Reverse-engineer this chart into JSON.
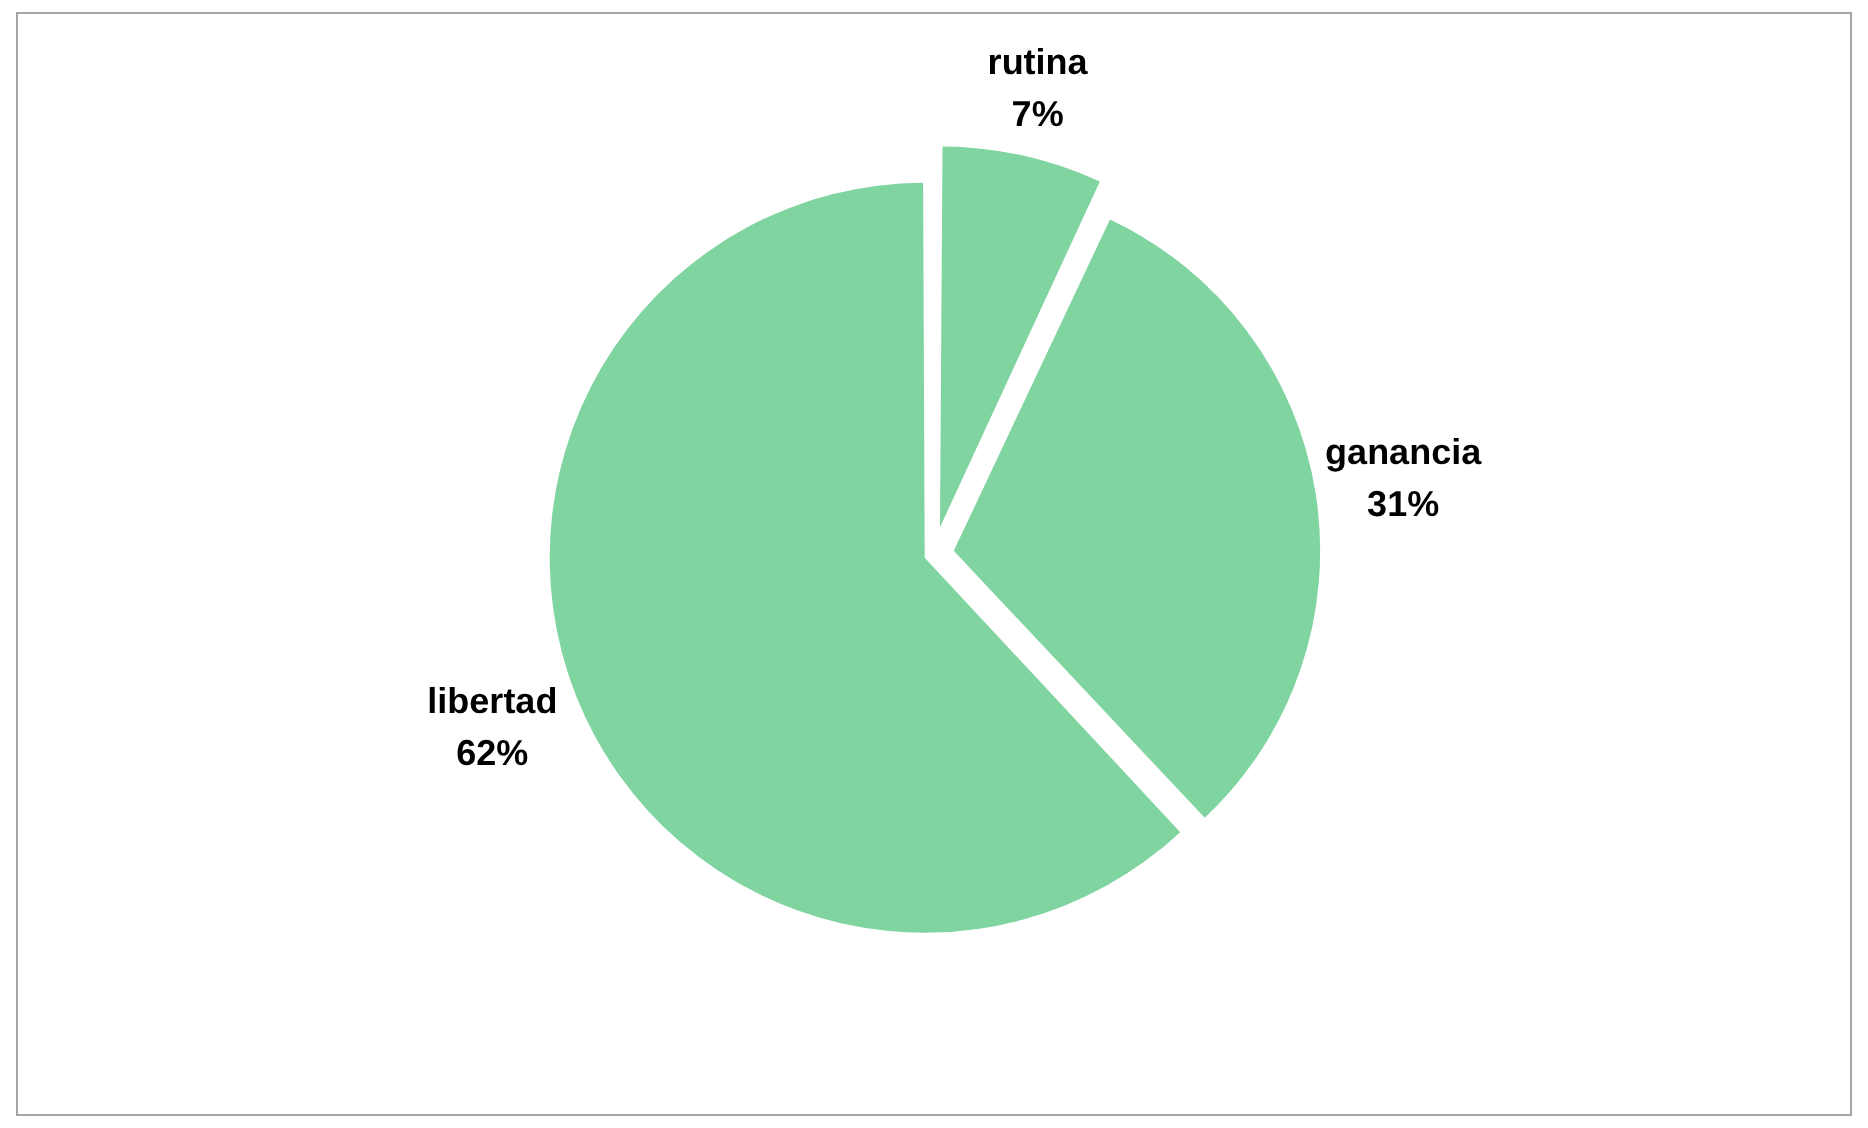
{
  "chart_data": {
    "type": "pie",
    "categories": [
      "rutina",
      "ganancia",
      "libertad"
    ],
    "values": [
      7,
      31,
      62
    ],
    "value_labels": [
      "7%",
      "31%",
      "62%"
    ],
    "colors": [
      "#7fd4a0",
      "#7fd4a0",
      "#7fd4a0"
    ],
    "legend": false
  }
}
